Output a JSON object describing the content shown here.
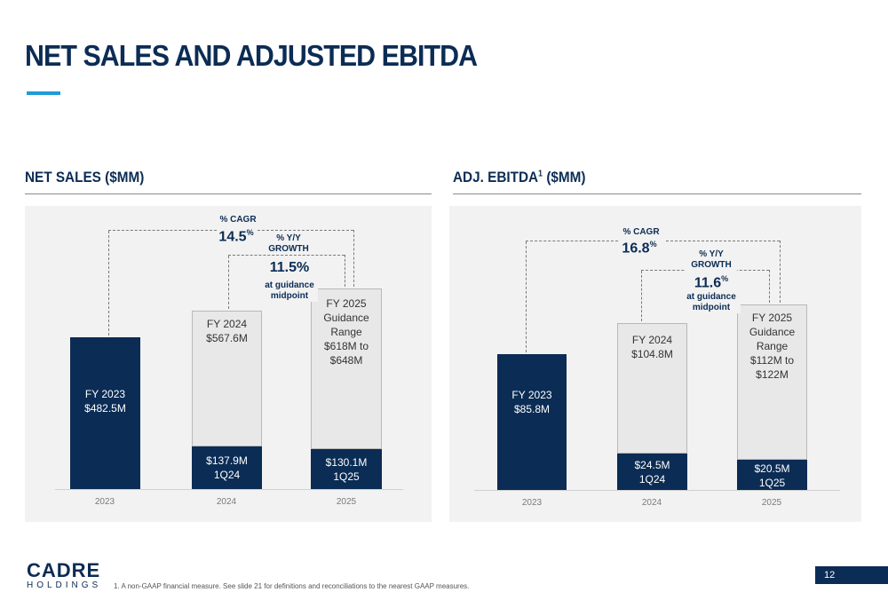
{
  "page": {
    "title": "NET SALES AND ADJUSTED EBITDA",
    "footnote": "1.     A non-GAAP financial measure. See slide 21 for definitions and reconciliations to the nearest GAAP measures.",
    "page_number": "12",
    "logo": {
      "mark": "CADRE",
      "sub": "HOLDINGS"
    }
  },
  "net_sales": {
    "section_title": "NET SALES ($MM)",
    "cagr_label": "% CAGR",
    "cagr_value": "14.5",
    "cagr_unit": "%",
    "yoy_label": "% Y/Y\nGROWTH",
    "yoy_value": "11.5%",
    "yoy_sub": "at guidance\nmidpoint",
    "bars": {
      "b2023": "FY 2023\n$482.5M",
      "b2024_top": "FY 2024\n$567.6M",
      "b2024_q": "$137.9M\n1Q24",
      "b2025_top": "FY 2025\nGuidance\nRange\n$618M to\n$648M",
      "b2025_q": "$130.1M\n1Q25"
    },
    "ticks": [
      "2023",
      "2024",
      "2025"
    ]
  },
  "ebitda": {
    "section_title_a": "ADJ. EBITDA",
    "section_title_sup": "1",
    "section_title_b": " ($MM)",
    "cagr_label": "% CAGR",
    "cagr_value": "16.8",
    "cagr_unit": "%",
    "yoy_label": "% Y/Y\nGROWTH",
    "yoy_value": "11.6",
    "yoy_unit": "%",
    "yoy_sub": "at guidance\nmidpoint",
    "bars": {
      "b2023": "FY 2023\n$85.8M",
      "b2024_top": "FY 2024\n$104.8M",
      "b2024_q": "$24.5M\n1Q24",
      "b2025_top": "FY 2025\nGuidance\nRange\n$112M to\n$122M",
      "b2025_q": "$20.5M\n1Q25"
    },
    "ticks": [
      "2023",
      "2024",
      "2025"
    ]
  },
  "colors": {
    "navy": "#0b2c54",
    "accent": "#1e9bd7",
    "light_bar": "#e8e8e8"
  }
}
